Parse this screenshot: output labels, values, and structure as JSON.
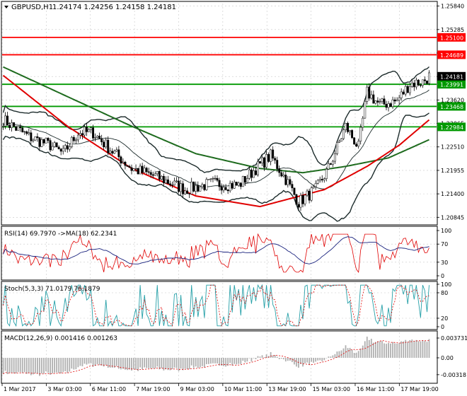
{
  "header": {
    "symbol": "GBPUSD,H1",
    "ohlc": "1.24174 1.24256 1.24158 1.24181"
  },
  "indicators": {
    "rsi": "RSI(14) 69.7970 ->MA(18) 62.2341",
    "stoch": "Stoch(5,3,3) 71.0179 76.1879",
    "macd": "MACD(12,26,9) 0.001416 0.001263"
  },
  "colors": {
    "candle": "#000000",
    "grid": "#c8c8c8",
    "bollinger": "#1c2b2b",
    "ma_red": "#e00000",
    "ma_green": "#1e6b1e",
    "level_red": "#ff0000",
    "level_green": "#009900",
    "price_tag": "#000000",
    "stoch_main": "#26a0a8",
    "signal_dotted": "#e00000"
  },
  "chart_data": [
    {
      "type": "candlestick",
      "title": "GBPUSD,H1",
      "ylim": [
        1.207,
        1.259
      ],
      "y_ticks": [
        1.2584,
        1.25285,
        1.2473,
        1.24175,
        1.2362,
        1.23065,
        1.2251,
        1.21955,
        1.214,
        1.20845
      ],
      "y_tick_labels": [
        "1.25840",
        "1.25285",
        "1.24730",
        "1.24175",
        "1.23620",
        "1.23065",
        "1.22510",
        "1.21955",
        "1.21400",
        "1.20845"
      ],
      "x_labels": [
        "1 Mar 2017",
        "3 Mar 03:00",
        "6 Mar 11:00",
        "7 Mar 19:00",
        "9 Mar 03:00",
        "10 Mar 11:00",
        "13 Mar 19:00",
        "15 Mar 03:00",
        "16 Mar 11:00",
        "17 Mar 19:00"
      ],
      "bars": 200,
      "price_path": [
        [
          0,
          1.2315
        ],
        [
          12,
          1.2275
        ],
        [
          22,
          1.2255
        ],
        [
          28,
          1.2235
        ],
        [
          35,
          1.2285
        ],
        [
          42,
          1.2285
        ],
        [
          50,
          1.2245
        ],
        [
          60,
          1.22
        ],
        [
          72,
          1.218
        ],
        [
          85,
          1.215
        ],
        [
          98,
          1.2165
        ],
        [
          110,
          1.216
        ],
        [
          118,
          1.22
        ],
        [
          125,
          1.223
        ],
        [
          132,
          1.2175
        ],
        [
          138,
          1.212
        ],
        [
          146,
          1.215
        ],
        [
          152,
          1.22
        ],
        [
          160,
          1.23
        ],
        [
          166,
          1.225
        ],
        [
          170,
          1.238
        ],
        [
          176,
          1.235
        ],
        [
          184,
          1.236
        ],
        [
          190,
          1.24
        ],
        [
          196,
          1.2405
        ],
        [
          199,
          1.2418
        ]
      ],
      "ma_red_path": [
        [
          0,
          1.242
        ],
        [
          30,
          1.23
        ],
        [
          60,
          1.22
        ],
        [
          90,
          1.2135
        ],
        [
          120,
          1.211
        ],
        [
          150,
          1.215
        ],
        [
          170,
          1.2205
        ],
        [
          185,
          1.2255
        ],
        [
          199,
          1.2315
        ]
      ],
      "ma_green_path": [
        [
          0,
          1.244
        ],
        [
          30,
          1.237
        ],
        [
          60,
          1.23
        ],
        [
          90,
          1.2235
        ],
        [
          120,
          1.22
        ],
        [
          140,
          1.219
        ],
        [
          160,
          1.2205
        ],
        [
          180,
          1.2225
        ],
        [
          199,
          1.2268
        ]
      ],
      "horizontal_levels": [
        {
          "value": 1.251,
          "label": "1.25100",
          "color": "red"
        },
        {
          "value": 1.24689,
          "label": "1.24689",
          "color": "red"
        },
        {
          "value": 1.23991,
          "label": "1.23991",
          "color": "green"
        },
        {
          "value": 1.23468,
          "label": "1.23468",
          "color": "green"
        },
        {
          "value": 1.22984,
          "label": "1.22984",
          "color": "green"
        }
      ],
      "last_price": {
        "value": 1.24181,
        "label": "1.24181"
      }
    },
    {
      "type": "line",
      "name": "RSI",
      "title": "RSI(14) 69.7970 ->MA(18) 62.2341",
      "ylim": [
        0,
        100
      ],
      "y_ticks": [
        100,
        70,
        30,
        0
      ],
      "y_tick_labels": [
        "100",
        "70",
        "30",
        "0"
      ]
    },
    {
      "type": "line",
      "name": "Stoch",
      "title": "Stoch(5,3,3) 71.0179 76.1879",
      "ylim": [
        0,
        100
      ],
      "y_ticks": [
        100,
        80,
        20,
        0
      ],
      "y_tick_labels": [
        "100",
        "80",
        "20",
        "0"
      ]
    },
    {
      "type": "bar",
      "name": "MACD",
      "title": "MACD(12,26,9) 0.001416 0.001263",
      "ylim": [
        -0.004,
        0.004
      ],
      "y_ticks": [
        0.003731,
        0.0,
        -0.00318
      ],
      "y_tick_labels": [
        "0.003731",
        "0.00",
        "-0.00318"
      ]
    }
  ]
}
